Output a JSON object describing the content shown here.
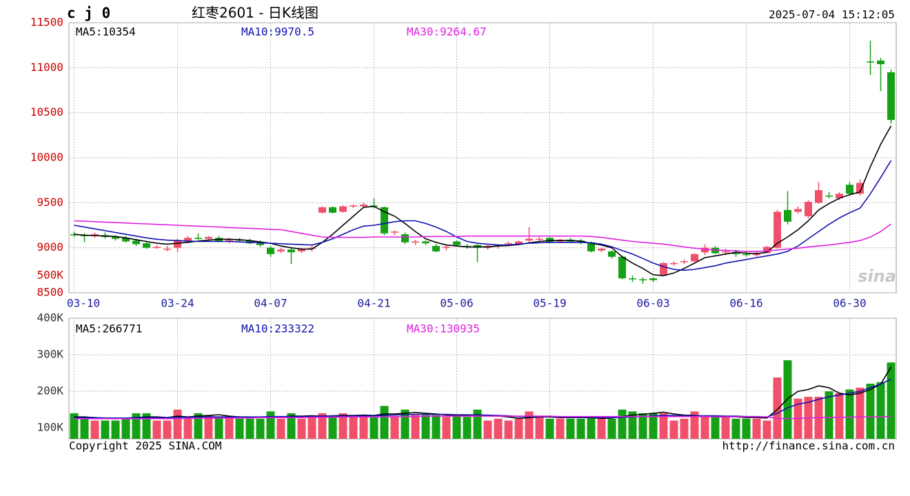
{
  "chart_data": [
    {
      "type": "candlestick",
      "symbol": "c j 0",
      "title": "红枣2601 - 日K线图",
      "timestamp": "2025-07-04 15:12:05",
      "copyright": "Copyright 2025 SINA.COM",
      "source": "http://finance.sina.com.cn",
      "watermark": "sina",
      "stray_label": "500K",
      "categories": [
        "03-10",
        null,
        null,
        null,
        null,
        null,
        null,
        null,
        null,
        null,
        "03-24",
        null,
        null,
        null,
        null,
        null,
        null,
        null,
        null,
        "04-07",
        null,
        null,
        null,
        null,
        null,
        null,
        null,
        null,
        null,
        "04-21",
        null,
        null,
        null,
        null,
        null,
        null,
        null,
        "05-06",
        null,
        null,
        null,
        null,
        null,
        null,
        null,
        null,
        "05-19",
        null,
        null,
        null,
        null,
        null,
        null,
        null,
        null,
        null,
        "06-03",
        null,
        null,
        null,
        null,
        null,
        null,
        null,
        null,
        "06-16",
        null,
        null,
        null,
        null,
        null,
        null,
        null,
        null,
        null,
        "06-30",
        null,
        null,
        null,
        null
      ],
      "open": [
        9150,
        9140,
        9130,
        9140,
        9120,
        9110,
        9080,
        9050,
        9010,
        8990,
        9000,
        9080,
        9110,
        9100,
        9110,
        9080,
        9090,
        9080,
        9050,
        9000,
        8960,
        8980,
        8960,
        8990,
        9390,
        9450,
        9400,
        9460,
        9460,
        9470,
        9450,
        9170,
        9150,
        9060,
        9070,
        9020,
        9000,
        9070,
        9020,
        9030,
        9000,
        9020,
        9040,
        9040,
        9080,
        9090,
        9110,
        9070,
        9090,
        9080,
        9060,
        8970,
        8960,
        8900,
        8660,
        8650,
        8660,
        8700,
        8820,
        8840,
        8850,
        8950,
        9000,
        8950,
        8940,
        8930,
        8920,
        8940,
        9000,
        9420,
        9400,
        9350,
        9500,
        9580,
        9550,
        9700,
        9600,
        11070,
        11080,
        10950
      ],
      "high": [
        9180,
        9160,
        9170,
        9170,
        9140,
        9130,
        9100,
        9070,
        9030,
        9020,
        9100,
        9130,
        9160,
        9130,
        9130,
        9110,
        9110,
        9100,
        9080,
        9020,
        9000,
        9000,
        9000,
        9020,
        9460,
        9460,
        9470,
        9480,
        9500,
        9550,
        9460,
        9190,
        9170,
        9090,
        9080,
        9040,
        9030,
        9080,
        9040,
        9040,
        9030,
        9040,
        9070,
        9080,
        9230,
        9120,
        9120,
        9100,
        9110,
        9100,
        9070,
        9000,
        8970,
        8910,
        8690,
        8670,
        8670,
        8840,
        8850,
        8870,
        8940,
        9040,
        9020,
        8990,
        8980,
        8960,
        8960,
        9020,
        9420,
        9630,
        9460,
        9530,
        9730,
        9620,
        9620,
        9730,
        9760,
        11300,
        11110,
        10980
      ],
      "low": [
        9120,
        9060,
        9110,
        9100,
        9080,
        9060,
        9020,
        8990,
        8990,
        8960,
        8950,
        9060,
        9090,
        9080,
        9060,
        9050,
        9060,
        9040,
        9010,
        8900,
        8940,
        8820,
        8940,
        8960,
        9380,
        9380,
        9390,
        9440,
        9450,
        9440,
        9140,
        9140,
        9040,
        9030,
        9030,
        8950,
        8970,
        9020,
        8990,
        8840,
        8980,
        8990,
        9020,
        9030,
        9060,
        9070,
        9050,
        9050,
        9050,
        9040,
        8950,
        8950,
        8880,
        8650,
        8620,
        8600,
        8620,
        8690,
        8800,
        8820,
        8840,
        8920,
        8930,
        8920,
        8900,
        8900,
        8900,
        8940,
        8990,
        9260,
        9380,
        9330,
        9490,
        9550,
        9530,
        9580,
        9580,
        10920,
        10740,
        10380
      ],
      "close": [
        9140,
        9130,
        9150,
        9120,
        9100,
        9070,
        9040,
        9000,
        9010,
        8990,
        9080,
        9110,
        9100,
        9120,
        9070,
        9090,
        9080,
        9050,
        9030,
        8930,
        8980,
        8950,
        8990,
        9000,
        9450,
        9390,
        9460,
        9470,
        9480,
        9460,
        9160,
        9180,
        9060,
        9070,
        9050,
        8960,
        9010,
        9030,
        9010,
        9000,
        9020,
        9030,
        9050,
        9070,
        9100,
        9100,
        9060,
        9090,
        9070,
        9060,
        8960,
        8990,
        8900,
        8660,
        8650,
        8640,
        8640,
        8830,
        8830,
        8850,
        8930,
        9000,
        8940,
        8960,
        8930,
        8920,
        8930,
        9010,
        9400,
        9290,
        9430,
        9510,
        9640,
        9570,
        9600,
        9600,
        9720,
        11060,
        11040,
        10420
      ],
      "up_color": "#f0506a",
      "down_color": "#16a016",
      "series": [
        {
          "name": "MA5:10354",
          "color": "#000000",
          "values": [
            9150,
            9140,
            9135,
            9130,
            9125,
            9110,
            9090,
            9070,
            9050,
            9040,
            9050,
            9060,
            9075,
            9085,
            9095,
            9095,
            9090,
            9080,
            9065,
            9050,
            9020,
            9000,
            8985,
            8985,
            9060,
            9150,
            9250,
            9350,
            9450,
            9460,
            9400,
            9350,
            9270,
            9180,
            9100,
            9060,
            9030,
            9020,
            9010,
            9010,
            9010,
            9020,
            9025,
            9035,
            9055,
            9070,
            9080,
            9080,
            9080,
            9075,
            9050,
            9030,
            9000,
            8900,
            8830,
            8770,
            8700,
            8690,
            8720,
            8770,
            8830,
            8890,
            8910,
            8930,
            8950,
            8940,
            8935,
            8950,
            9050,
            9120,
            9200,
            9300,
            9420,
            9490,
            9550,
            9590,
            9620,
            9900,
            10150,
            10354
          ]
        },
        {
          "name": "MA10:9970.5",
          "color": "#1010b0",
          "values": [
            9250,
            9230,
            9210,
            9190,
            9170,
            9150,
            9130,
            9110,
            9095,
            9085,
            9080,
            9075,
            9070,
            9070,
            9070,
            9070,
            9065,
            9060,
            9055,
            9050,
            9045,
            9040,
            9035,
            9030,
            9060,
            9100,
            9150,
            9200,
            9240,
            9250,
            9270,
            9290,
            9300,
            9300,
            9270,
            9230,
            9180,
            9120,
            9070,
            9050,
            9040,
            9030,
            9030,
            9040,
            9050,
            9055,
            9060,
            9060,
            9060,
            9060,
            9055,
            9040,
            9010,
            8970,
            8930,
            8880,
            8830,
            8790,
            8760,
            8750,
            8760,
            8780,
            8800,
            8830,
            8850,
            8870,
            8890,
            8910,
            8930,
            8960,
            9020,
            9100,
            9180,
            9260,
            9330,
            9390,
            9440,
            9600,
            9780,
            9970.5
          ]
        },
        {
          "name": "MA30:9264.67",
          "color": "#e020e0",
          "values": [
            9300,
            9295,
            9290,
            9285,
            9280,
            9275,
            9270,
            9265,
            9260,
            9255,
            9250,
            9245,
            9240,
            9235,
            9230,
            9225,
            9220,
            9215,
            9210,
            9205,
            9200,
            9180,
            9160,
            9140,
            9120,
            9115,
            9115,
            9115,
            9115,
            9120,
            9120,
            9120,
            9120,
            9120,
            9125,
            9125,
            9125,
            9125,
            9130,
            9130,
            9130,
            9130,
            9130,
            9130,
            9130,
            9130,
            9130,
            9130,
            9130,
            9130,
            9125,
            9115,
            9100,
            9085,
            9070,
            9060,
            9050,
            9040,
            9025,
            9010,
            8995,
            8985,
            8975,
            8970,
            8965,
            8960,
            8960,
            8965,
            8975,
            8985,
            8995,
            9010,
            9020,
            9030,
            9045,
            9060,
            9080,
            9120,
            9180,
            9264.67
          ]
        }
      ],
      "ylim": [
        8500,
        11500
      ],
      "yticks": [
        8500,
        9000,
        9500,
        10000,
        10500,
        11000,
        11500
      ],
      "grid": true
    },
    {
      "type": "bar",
      "values": [
        140000,
        125000,
        120000,
        120000,
        120000,
        125000,
        140000,
        140000,
        120000,
        120000,
        150000,
        125000,
        140000,
        135000,
        130000,
        130000,
        125000,
        125000,
        125000,
        145000,
        125000,
        140000,
        125000,
        130000,
        140000,
        130000,
        140000,
        130000,
        135000,
        130000,
        160000,
        130000,
        150000,
        135000,
        135000,
        135000,
        130000,
        135000,
        130000,
        150000,
        120000,
        125000,
        120000,
        125000,
        145000,
        130000,
        125000,
        125000,
        125000,
        125000,
        130000,
        125000,
        125000,
        150000,
        145000,
        140000,
        140000,
        140000,
        120000,
        125000,
        145000,
        130000,
        130000,
        130000,
        125000,
        125000,
        125000,
        120000,
        238000,
        285000,
        180000,
        185000,
        185000,
        200000,
        195000,
        205000,
        210000,
        221000,
        225000,
        279000
      ],
      "series": [
        {
          "name": "MA5:266771",
          "color": "#000000",
          "values": [
            130000,
            130000,
            128000,
            126000,
            125000,
            126000,
            128000,
            130000,
            130000,
            128000,
            132000,
            130000,
            132000,
            134000,
            136000,
            132000,
            130000,
            128000,
            128000,
            130000,
            130000,
            132000,
            132000,
            133000,
            132000,
            133000,
            134000,
            134000,
            135000,
            134000,
            138000,
            138000,
            140000,
            142000,
            140000,
            138000,
            135000,
            134000,
            134000,
            136000,
            134000,
            132000,
            130000,
            126000,
            128000,
            130000,
            130000,
            128000,
            128000,
            128000,
            128000,
            126000,
            127000,
            131000,
            135000,
            137000,
            140000,
            143000,
            138000,
            135000,
            134000,
            132000,
            132000,
            130000,
            130000,
            128000,
            128000,
            127000,
            150000,
            180000,
            200000,
            205000,
            215000,
            210000,
            195000,
            190000,
            195000,
            205000,
            220000,
            266771
          ]
        },
        {
          "name": "MA10:233322",
          "color": "#1010b0",
          "values": [
            128000,
            128000,
            128000,
            127000,
            127000,
            127000,
            128000,
            128000,
            128000,
            128000,
            129000,
            129000,
            130000,
            130000,
            130000,
            130000,
            130000,
            130000,
            130000,
            131000,
            131000,
            131000,
            131000,
            131000,
            132000,
            132000,
            132000,
            133000,
            133000,
            133000,
            134000,
            135000,
            136000,
            137000,
            137000,
            137000,
            137000,
            136000,
            136000,
            135000,
            135000,
            134000,
            133000,
            131000,
            131000,
            131000,
            131000,
            130000,
            129000,
            129000,
            129000,
            128000,
            128000,
            129000,
            130000,
            131000,
            133000,
            134000,
            134000,
            133000,
            133000,
            133000,
            133000,
            132000,
            132000,
            131000,
            131000,
            130000,
            140000,
            155000,
            165000,
            170000,
            178000,
            185000,
            190000,
            195000,
            200000,
            210000,
            220000,
            233322
          ]
        },
        {
          "name": "MA30:130935",
          "color": "#e020e0",
          "values": [
            125000,
            125000,
            125000,
            125000,
            125000,
            125000,
            125000,
            125000,
            125000,
            125000,
            125000,
            126000,
            126000,
            126000,
            127000,
            127000,
            127000,
            127000,
            128000,
            128000,
            128000,
            128000,
            128000,
            129000,
            129000,
            129000,
            130000,
            130000,
            130000,
            130000,
            130000,
            131000,
            131000,
            131000,
            132000,
            132000,
            132000,
            132000,
            132000,
            132000,
            132000,
            132000,
            132000,
            132000,
            132000,
            132000,
            132000,
            131000,
            131000,
            131000,
            131000,
            131000,
            131000,
            131000,
            131000,
            131000,
            131000,
            131000,
            131000,
            131000,
            131000,
            131000,
            130000,
            130000,
            130000,
            130000,
            130000,
            130000,
            126000,
            125000,
            126000,
            127000,
            128000,
            128000,
            129000,
            129000,
            130000,
            130000,
            130500,
            130935
          ]
        }
      ],
      "ylim": [
        70000,
        400000
      ],
      "yticks": [
        {
          "value": 100000,
          "label": "100K"
        },
        {
          "value": 200000,
          "label": "200K"
        },
        {
          "value": 300000,
          "label": "300K"
        },
        {
          "value": 400000,
          "label": "400K"
        }
      ],
      "grid": true
    }
  ]
}
